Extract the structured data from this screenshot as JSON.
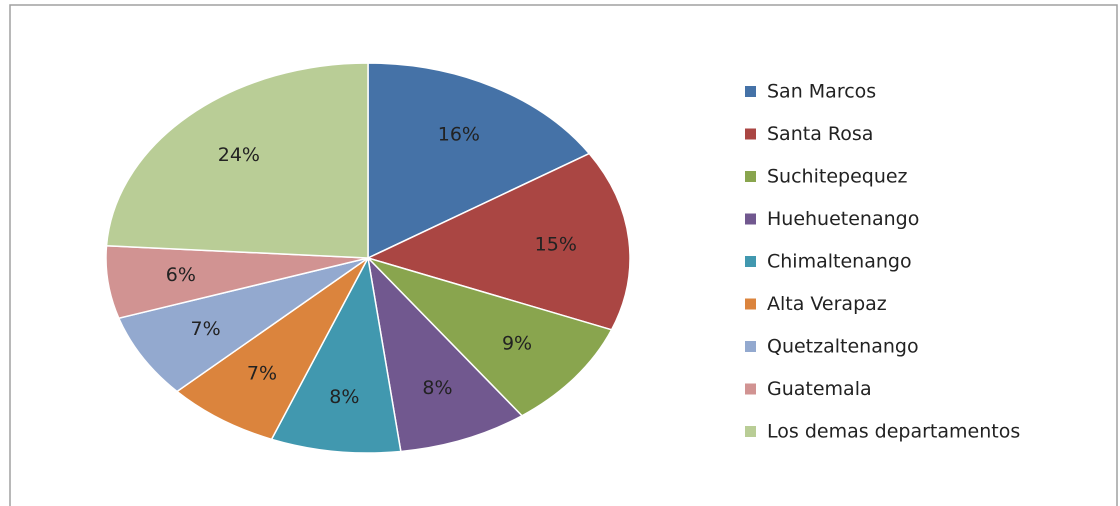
{
  "chart_data": {
    "type": "pie",
    "categories": [
      "San Marcos",
      "Santa Rosa",
      "Suchitepequez",
      "Huehuetenango",
      "Chimaltenango",
      "Alta Verapaz",
      "Quetzaltenango",
      "Guatemala",
      "Los demas departamentos"
    ],
    "values": [
      16,
      15,
      9,
      8,
      8,
      7,
      7,
      6,
      24
    ],
    "value_labels": [
      "16%",
      "15%",
      "9%",
      "8%",
      "8%",
      "7%",
      "7%",
      "6%",
      "24%"
    ],
    "colors": [
      "#4572a7",
      "#aa4643",
      "#89a54e",
      "#71588f",
      "#4198af",
      "#db843d",
      "#93a9cf",
      "#d19392",
      "#b9cd96"
    ],
    "legend": "right"
  }
}
